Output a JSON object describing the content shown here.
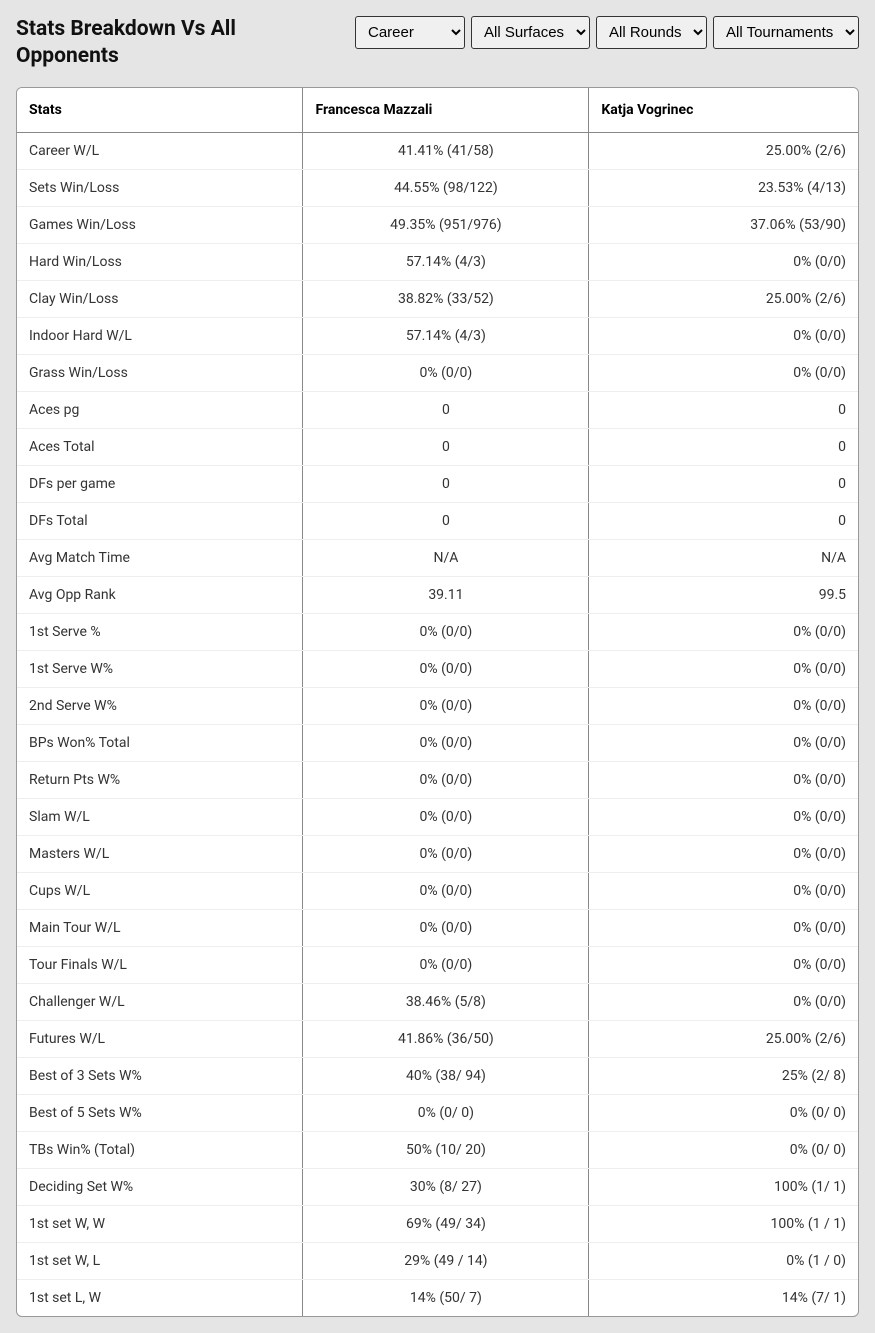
{
  "title": "Stats Breakdown Vs All Opponents",
  "filters": {
    "period": {
      "selected": "Career",
      "options": [
        "Career"
      ]
    },
    "surface": {
      "selected": "All Surfaces",
      "options": [
        "All Surfaces"
      ]
    },
    "round": {
      "selected": "All Rounds",
      "options": [
        "All Rounds"
      ]
    },
    "tournament": {
      "selected": "All Tournaments",
      "options": [
        "All Tournaments"
      ]
    }
  },
  "columns": {
    "stat": "Stats",
    "player1": "Francesca Mazzali",
    "player2": "Katja Vogrinec"
  },
  "rows": [
    {
      "stat": "Career W/L",
      "p1": "41.41% (41/58)",
      "p2": "25.00% (2/6)"
    },
    {
      "stat": "Sets Win/Loss",
      "p1": "44.55% (98/122)",
      "p2": "23.53% (4/13)"
    },
    {
      "stat": "Games Win/Loss",
      "p1": "49.35% (951/976)",
      "p2": "37.06% (53/90)"
    },
    {
      "stat": "Hard Win/Loss",
      "p1": "57.14% (4/3)",
      "p2": "0% (0/0)"
    },
    {
      "stat": "Clay Win/Loss",
      "p1": "38.82% (33/52)",
      "p2": "25.00% (2/6)"
    },
    {
      "stat": "Indoor Hard W/L",
      "p1": "57.14% (4/3)",
      "p2": "0% (0/0)"
    },
    {
      "stat": "Grass Win/Loss",
      "p1": "0% (0/0)",
      "p2": "0% (0/0)"
    },
    {
      "stat": "Aces pg",
      "p1": "0",
      "p2": "0"
    },
    {
      "stat": "Aces Total",
      "p1": "0",
      "p2": "0"
    },
    {
      "stat": "DFs per game",
      "p1": "0",
      "p2": "0"
    },
    {
      "stat": "DFs Total",
      "p1": "0",
      "p2": "0"
    },
    {
      "stat": "Avg Match Time",
      "p1": "N/A",
      "p2": "N/A"
    },
    {
      "stat": "Avg Opp Rank",
      "p1": "39.11",
      "p2": "99.5"
    },
    {
      "stat": "1st Serve %",
      "p1": "0% (0/0)",
      "p2": "0% (0/0)"
    },
    {
      "stat": "1st Serve W%",
      "p1": "0% (0/0)",
      "p2": "0% (0/0)"
    },
    {
      "stat": "2nd Serve W%",
      "p1": "0% (0/0)",
      "p2": "0% (0/0)"
    },
    {
      "stat": "BPs Won% Total",
      "p1": "0% (0/0)",
      "p2": "0% (0/0)"
    },
    {
      "stat": "Return Pts W%",
      "p1": "0% (0/0)",
      "p2": "0% (0/0)"
    },
    {
      "stat": "Slam W/L",
      "p1": "0% (0/0)",
      "p2": "0% (0/0)"
    },
    {
      "stat": "Masters W/L",
      "p1": "0% (0/0)",
      "p2": "0% (0/0)"
    },
    {
      "stat": "Cups W/L",
      "p1": "0% (0/0)",
      "p2": "0% (0/0)"
    },
    {
      "stat": "Main Tour W/L",
      "p1": "0% (0/0)",
      "p2": "0% (0/0)"
    },
    {
      "stat": "Tour Finals W/L",
      "p1": "0% (0/0)",
      "p2": "0% (0/0)"
    },
    {
      "stat": "Challenger W/L",
      "p1": "38.46% (5/8)",
      "p2": "0% (0/0)"
    },
    {
      "stat": "Futures W/L",
      "p1": "41.86% (36/50)",
      "p2": "25.00% (2/6)"
    },
    {
      "stat": "Best of 3 Sets W%",
      "p1": "40% (38/ 94)",
      "p2": "25% (2/ 8)"
    },
    {
      "stat": "Best of 5 Sets W%",
      "p1": "0% (0/ 0)",
      "p2": "0% (0/ 0)"
    },
    {
      "stat": "TBs Win% (Total)",
      "p1": "50% (10/ 20)",
      "p2": "0% (0/ 0)"
    },
    {
      "stat": "Deciding Set W%",
      "p1": "30% (8/ 27)",
      "p2": "100% (1/ 1)"
    },
    {
      "stat": "1st set W, W",
      "p1": "69% (49/ 34)",
      "p2": "100% (1 / 1)"
    },
    {
      "stat": "1st set W, L",
      "p1": "29% (49 / 14)",
      "p2": "0% (1 / 0)"
    },
    {
      "stat": "1st set L, W",
      "p1": "14% (50/ 7)",
      "p2": "14% (7/ 1)"
    }
  ],
  "styling": {
    "background_color": "#e5e5e5",
    "table_background": "#ffffff",
    "border_color": "#888888",
    "row_border_color": "#eeeeee",
    "header_font_weight": 700,
    "title_fontsize": 21,
    "body_fontsize": 14,
    "col1_align": "left",
    "col2_align": "center",
    "col3_align": "right"
  }
}
